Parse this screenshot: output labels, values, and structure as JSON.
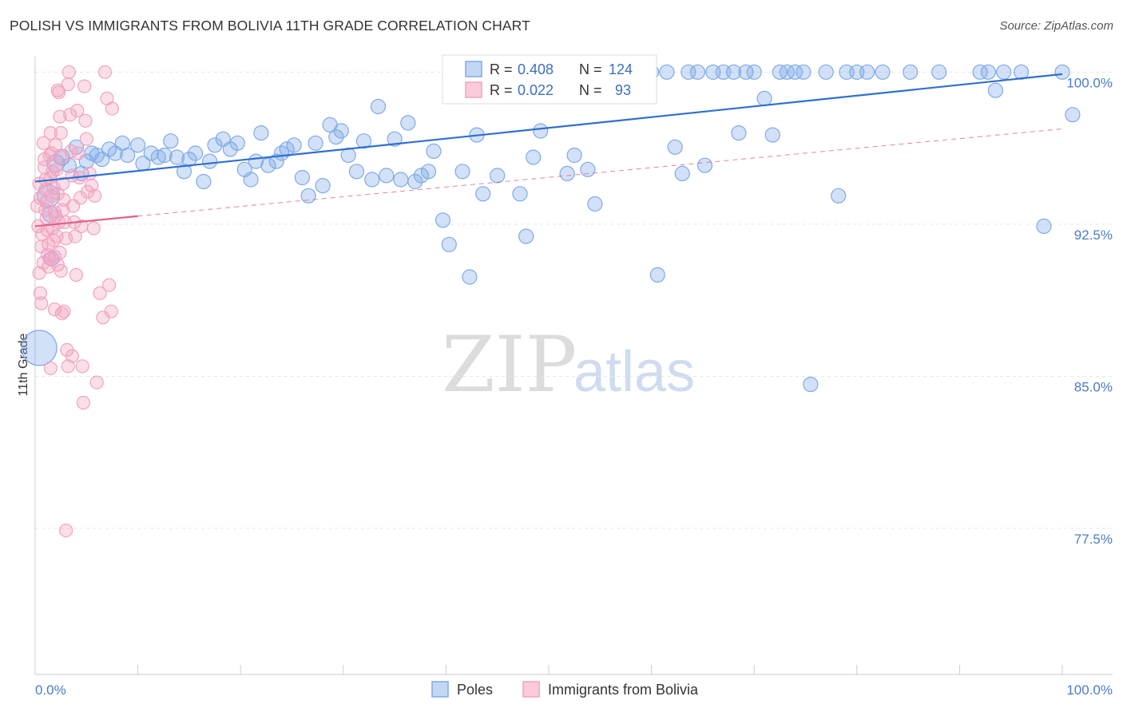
{
  "header": {
    "title": "POLISH VS IMMIGRANTS FROM BOLIVIA 11TH GRADE CORRELATION CHART",
    "source": "Source: ZipAtlas.com"
  },
  "watermark": {
    "part1": "ZIP",
    "part2": "atlas"
  },
  "legend_box": {
    "rows": [
      {
        "r_label": "R = ",
        "r_value": "0.408",
        "n_label": "N = ",
        "n_value": "124",
        "color": "#7eaae8"
      },
      {
        "r_label": "R = ",
        "r_value": "0.022",
        "n_label": "N = ",
        "n_value": "93",
        "color": "#f2a2bf"
      }
    ]
  },
  "bottom_legend": [
    {
      "label": "Poles",
      "color": "#7eaae8"
    },
    {
      "label": "Immigrants from Bolivia",
      "color": "#f2a2bf"
    }
  ],
  "chart_data": {
    "type": "scatter",
    "title": "POLISH VS IMMIGRANTS FROM BOLIVIA 11TH GRADE CORRELATION CHART",
    "xlabel": "",
    "ylabel": "11th Grade",
    "xlim": [
      0,
      100
    ],
    "ylim": [
      70.3,
      100.8
    ],
    "x_tick_labels": [
      "0.0%",
      "100.0%"
    ],
    "y_ticks": [
      {
        "value": 100.0,
        "label": "100.0%"
      },
      {
        "value": 92.5,
        "label": "92.5%"
      },
      {
        "value": 85.0,
        "label": "85.0%"
      },
      {
        "value": 77.5,
        "label": "77.5%"
      }
    ],
    "grid": true,
    "legend_position": "top-center",
    "series": [
      {
        "name": "Poles",
        "color": "#7eaae8",
        "line_color": "#2f6fd0",
        "R": 0.408,
        "N": 124,
        "trend": {
          "x": [
            0,
            100
          ],
          "y": [
            94.6,
            99.9
          ],
          "style": "solid"
        },
        "points": [
          [
            0.4,
            86.4,
            22
          ],
          [
            1.3,
            93.9,
            14
          ],
          [
            1.5,
            93.0,
            10
          ],
          [
            1.6,
            90.8,
            9
          ],
          [
            2.0,
            95.5,
            11
          ],
          [
            2.6,
            95.8,
            10
          ],
          [
            3.3,
            95.4,
            9
          ],
          [
            4.0,
            96.3,
            9
          ],
          [
            4.5,
            95.0,
            9
          ],
          [
            5.0,
            95.6,
            9
          ],
          [
            5.5,
            96.0,
            9
          ],
          [
            6.0,
            95.9,
            9
          ],
          [
            6.5,
            95.7,
            9
          ],
          [
            7.2,
            96.2,
            9
          ],
          [
            7.8,
            96.0,
            9
          ],
          [
            8.5,
            96.5,
            9
          ],
          [
            9.0,
            95.9,
            9
          ],
          [
            10.0,
            96.4,
            9
          ],
          [
            10.5,
            95.5,
            9
          ],
          [
            11.3,
            96.0,
            9
          ],
          [
            12.0,
            95.8,
            9
          ],
          [
            12.6,
            95.9,
            9
          ],
          [
            13.2,
            96.6,
            9
          ],
          [
            13.8,
            95.8,
            9
          ],
          [
            14.5,
            95.1,
            9
          ],
          [
            15.0,
            95.7,
            9
          ],
          [
            15.6,
            96.0,
            9
          ],
          [
            16.4,
            94.6,
            9
          ],
          [
            17.0,
            95.6,
            9
          ],
          [
            17.5,
            96.4,
            9
          ],
          [
            18.3,
            96.7,
            9
          ],
          [
            19.0,
            96.2,
            9
          ],
          [
            19.7,
            96.5,
            9
          ],
          [
            20.4,
            95.2,
            9
          ],
          [
            21.0,
            94.7,
            9
          ],
          [
            21.5,
            95.6,
            9
          ],
          [
            22.0,
            97.0,
            9
          ],
          [
            22.7,
            95.4,
            9
          ],
          [
            23.5,
            95.6,
            9
          ],
          [
            24.0,
            96.0,
            9
          ],
          [
            24.5,
            96.2,
            9
          ],
          [
            25.2,
            96.4,
            9
          ],
          [
            26.0,
            94.8,
            9
          ],
          [
            26.6,
            93.9,
            9
          ],
          [
            27.3,
            96.5,
            9
          ],
          [
            28.0,
            94.4,
            9
          ],
          [
            28.7,
            97.4,
            9
          ],
          [
            29.3,
            96.8,
            9
          ],
          [
            29.8,
            97.1,
            9
          ],
          [
            30.5,
            95.9,
            9
          ],
          [
            31.3,
            95.1,
            9
          ],
          [
            32.0,
            96.6,
            9
          ],
          [
            32.8,
            94.7,
            9
          ],
          [
            33.4,
            98.3,
            9
          ],
          [
            34.2,
            94.9,
            9
          ],
          [
            35.0,
            96.7,
            9
          ],
          [
            35.6,
            94.7,
            9
          ],
          [
            36.3,
            97.5,
            9
          ],
          [
            37.0,
            94.6,
            9
          ],
          [
            37.6,
            94.9,
            9
          ],
          [
            38.3,
            95.1,
            9
          ],
          [
            38.8,
            96.1,
            9
          ],
          [
            39.7,
            92.7,
            9
          ],
          [
            40.3,
            91.5,
            9
          ],
          [
            41.0,
            99.2,
            9
          ],
          [
            41.6,
            95.1,
            9
          ],
          [
            42.3,
            89.9,
            9
          ],
          [
            43.0,
            96.9,
            9
          ],
          [
            43.6,
            94.0,
            9
          ],
          [
            44.5,
            100.0,
            9
          ],
          [
            45.0,
            94.9,
            9
          ],
          [
            45.8,
            99.6,
            9
          ],
          [
            46.5,
            100.0,
            9
          ],
          [
            47.2,
            94.0,
            9
          ],
          [
            47.8,
            91.9,
            9
          ],
          [
            48.5,
            95.8,
            9
          ],
          [
            49.2,
            97.1,
            9
          ],
          [
            50.0,
            100.0,
            9
          ],
          [
            51.0,
            100.0,
            9
          ],
          [
            51.8,
            95.0,
            9
          ],
          [
            52.5,
            95.9,
            9
          ],
          [
            53.0,
            99.6,
            9
          ],
          [
            53.8,
            95.2,
            9
          ],
          [
            54.5,
            93.5,
            9
          ],
          [
            55.0,
            100.0,
            9
          ],
          [
            55.6,
            100.0,
            9
          ],
          [
            56.4,
            100.0,
            9
          ],
          [
            57.0,
            99.5,
            9
          ],
          [
            58.0,
            100.0,
            9
          ],
          [
            59.0,
            100.0,
            9
          ],
          [
            60.0,
            100.0,
            9
          ],
          [
            60.6,
            90.0,
            9
          ],
          [
            61.5,
            100.0,
            9
          ],
          [
            62.3,
            96.3,
            9
          ],
          [
            63.0,
            95.0,
            9
          ],
          [
            63.6,
            100.0,
            9
          ],
          [
            64.5,
            100.0,
            9
          ],
          [
            65.2,
            95.4,
            9
          ],
          [
            66.0,
            100.0,
            9
          ],
          [
            67.0,
            100.0,
            9
          ],
          [
            68.0,
            100.0,
            9
          ],
          [
            68.5,
            97.0,
            9
          ],
          [
            69.2,
            100.0,
            9
          ],
          [
            70.0,
            100.0,
            9
          ],
          [
            71.0,
            98.7,
            9
          ],
          [
            71.8,
            96.9,
            9
          ],
          [
            72.5,
            100.0,
            9
          ],
          [
            73.2,
            100.0,
            9
          ],
          [
            74.0,
            100.0,
            9
          ],
          [
            74.8,
            100.0,
            9
          ],
          [
            75.5,
            84.6,
            9
          ],
          [
            77.0,
            100.0,
            9
          ],
          [
            78.2,
            93.9,
            9
          ],
          [
            79.0,
            100.0,
            9
          ],
          [
            80.0,
            100.0,
            9
          ],
          [
            81.0,
            100.0,
            9
          ],
          [
            82.5,
            100.0,
            9
          ],
          [
            85.2,
            100.0,
            9
          ],
          [
            88.0,
            100.0,
            9
          ],
          [
            92.0,
            100.0,
            9
          ],
          [
            92.8,
            100.0,
            9
          ],
          [
            93.5,
            99.1,
            9
          ],
          [
            94.3,
            100.0,
            9
          ],
          [
            96.0,
            100.0,
            9
          ],
          [
            98.2,
            92.4,
            9
          ],
          [
            100.0,
            100.0,
            9
          ],
          [
            101.0,
            97.9,
            9
          ]
        ]
      },
      {
        "name": "Immigrants from Bolivia",
        "color": "#f2a2bf",
        "line_color": "#e0608c",
        "R": 0.022,
        "N": 93,
        "trend": {
          "x": [
            0,
            10
          ],
          "y": [
            92.4,
            92.9
          ],
          "style": "solid",
          "extension": {
            "x": [
              10,
              100
            ],
            "y": [
              92.9,
              97.2
            ],
            "style": "dashed"
          }
        },
        "points": [
          [
            0.2,
            93.4,
            8
          ],
          [
            0.3,
            92.4,
            8
          ],
          [
            0.4,
            90.1,
            8
          ],
          [
            0.5,
            89.1,
            8
          ],
          [
            0.6,
            88.6,
            8
          ],
          [
            0.4,
            94.5,
            8
          ],
          [
            0.5,
            93.8,
            8
          ],
          [
            0.6,
            91.4,
            8
          ],
          [
            0.7,
            92.0,
            8
          ],
          [
            0.8,
            90.6,
            8
          ],
          [
            0.9,
            95.3,
            8
          ],
          [
            1.0,
            94.2,
            8
          ],
          [
            1.0,
            93.2,
            8
          ],
          [
            1.1,
            92.8,
            8
          ],
          [
            1.2,
            91.0,
            8
          ],
          [
            1.3,
            90.4,
            8
          ],
          [
            1.4,
            95.9,
            8
          ],
          [
            1.5,
            94.8,
            8
          ],
          [
            1.6,
            93.9,
            8
          ],
          [
            1.7,
            92.3,
            8
          ],
          [
            1.8,
            91.7,
            8
          ],
          [
            1.9,
            90.9,
            8
          ],
          [
            2.0,
            96.4,
            8
          ],
          [
            2.1,
            95.2,
            8
          ],
          [
            2.2,
            94.0,
            8
          ],
          [
            2.3,
            92.6,
            8
          ],
          [
            2.4,
            91.1,
            8
          ],
          [
            2.5,
            90.2,
            8
          ],
          [
            0.8,
            96.5,
            8
          ],
          [
            0.9,
            95.7,
            8
          ],
          [
            1.0,
            94.7,
            8
          ],
          [
            1.1,
            93.6,
            8
          ],
          [
            1.2,
            92.2,
            8
          ],
          [
            1.3,
            91.5,
            8
          ],
          [
            1.4,
            90.8,
            8
          ],
          [
            1.5,
            97.0,
            8
          ],
          [
            1.6,
            96.0,
            8
          ],
          [
            1.7,
            95.1,
            8
          ],
          [
            1.8,
            94.3,
            8
          ],
          [
            1.9,
            93.1,
            8
          ],
          [
            2.0,
            92.9,
            8
          ],
          [
            2.1,
            91.9,
            8
          ],
          [
            2.2,
            90.5,
            8
          ],
          [
            2.3,
            99.0,
            8
          ],
          [
            2.4,
            97.8,
            8
          ],
          [
            2.5,
            97.0,
            8
          ],
          [
            2.6,
            95.8,
            8
          ],
          [
            2.7,
            94.5,
            8
          ],
          [
            2.8,
            93.7,
            8
          ],
          [
            2.9,
            92.6,
            8
          ],
          [
            3.0,
            91.8,
            8
          ],
          [
            3.1,
            86.3,
            8
          ],
          [
            3.2,
            85.5,
            8
          ],
          [
            2.6,
            88.1,
            8
          ],
          [
            2.8,
            88.2,
            8
          ],
          [
            3.0,
            77.4,
            8
          ],
          [
            3.3,
            100.0,
            8
          ],
          [
            3.4,
            97.9,
            8
          ],
          [
            3.5,
            96.1,
            8
          ],
          [
            3.6,
            94.9,
            8
          ],
          [
            3.7,
            93.4,
            8
          ],
          [
            3.8,
            92.6,
            8
          ],
          [
            3.9,
            91.9,
            8
          ],
          [
            4.0,
            90.0,
            8
          ],
          [
            4.1,
            98.1,
            8
          ],
          [
            4.2,
            96.0,
            8
          ],
          [
            4.3,
            94.8,
            8
          ],
          [
            4.4,
            93.8,
            8
          ],
          [
            4.5,
            92.4,
            8
          ],
          [
            4.6,
            85.5,
            8
          ],
          [
            4.7,
            83.7,
            8
          ],
          [
            4.8,
            99.3,
            8
          ],
          [
            4.9,
            97.6,
            8
          ],
          [
            5.0,
            96.7,
            8
          ],
          [
            5.1,
            94.1,
            8
          ],
          [
            5.3,
            95.0,
            8
          ],
          [
            5.5,
            94.4,
            8
          ],
          [
            5.7,
            92.3,
            8
          ],
          [
            5.8,
            93.9,
            8
          ],
          [
            6.0,
            84.7,
            8
          ],
          [
            6.3,
            89.1,
            8
          ],
          [
            6.6,
            87.9,
            8
          ],
          [
            6.8,
            100.0,
            8
          ],
          [
            7.0,
            98.7,
            8
          ],
          [
            7.2,
            89.5,
            8
          ],
          [
            7.4,
            88.2,
            8
          ],
          [
            7.5,
            98.2,
            8
          ],
          [
            3.2,
            99.4,
            8
          ],
          [
            3.6,
            86.0,
            8
          ],
          [
            2.2,
            99.1,
            8
          ],
          [
            1.9,
            88.3,
            8
          ],
          [
            1.5,
            85.4,
            8
          ],
          [
            2.7,
            93.2,
            8
          ]
        ]
      }
    ]
  }
}
